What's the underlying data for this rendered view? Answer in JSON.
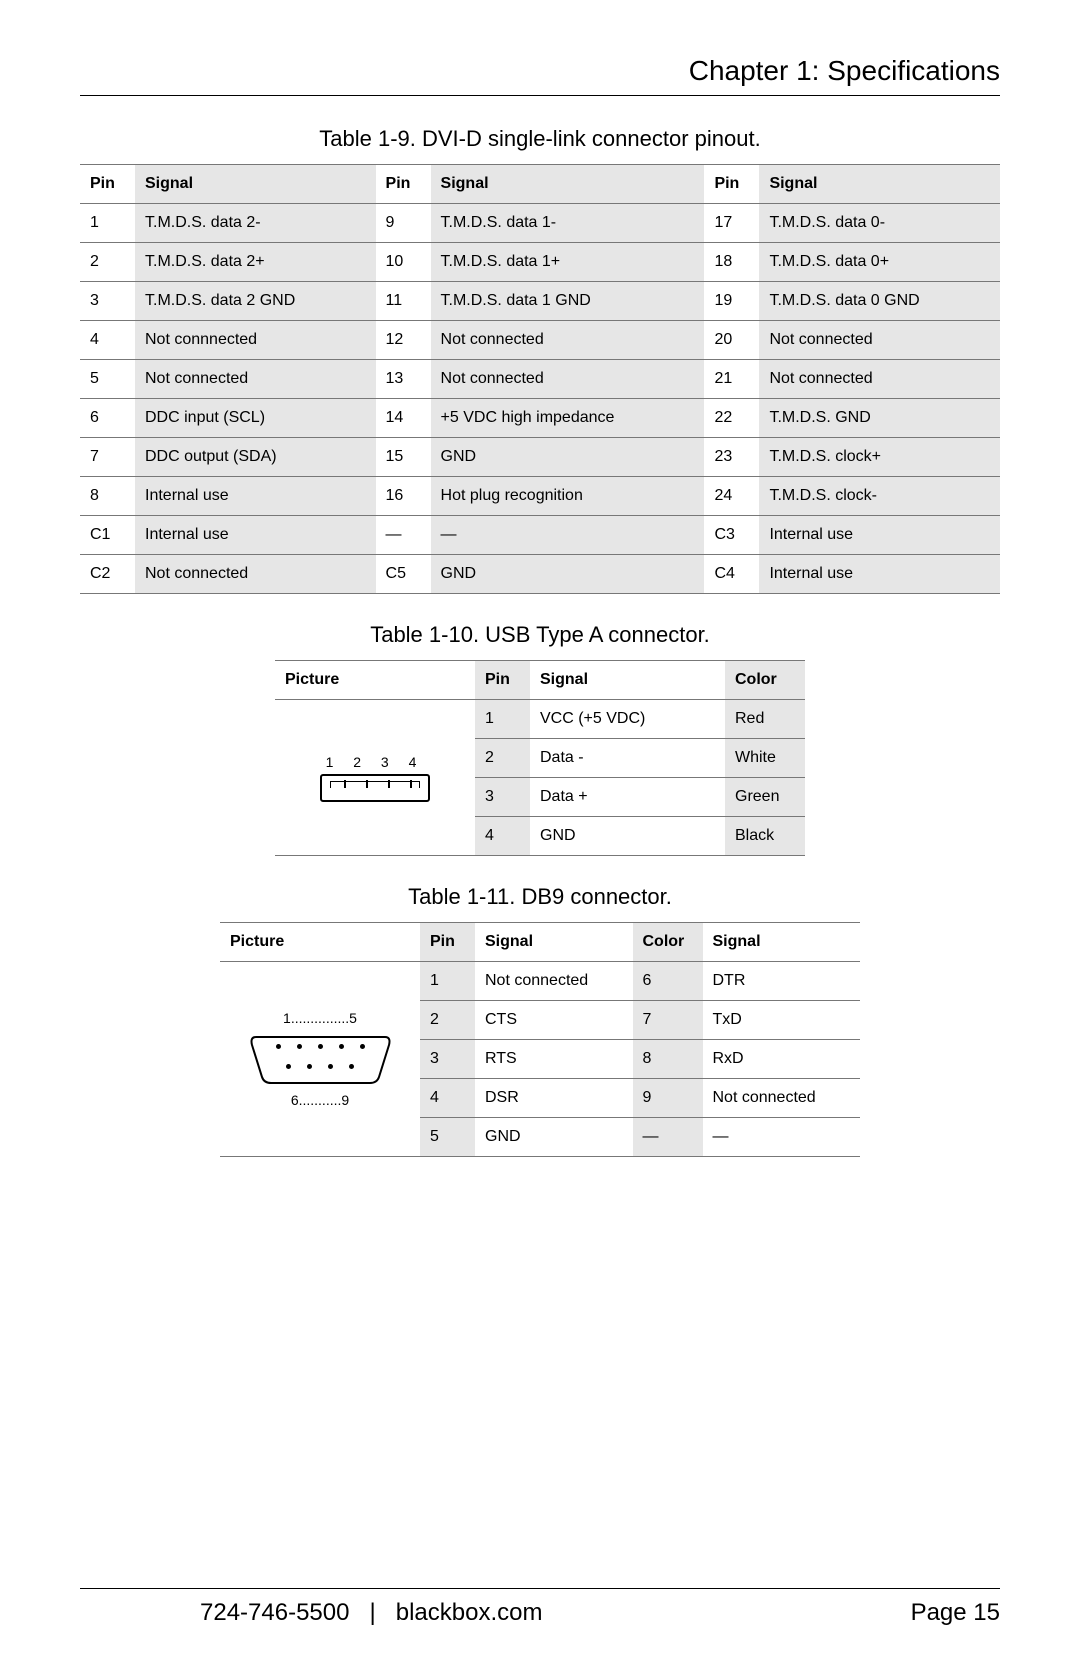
{
  "chapter_title": "Chapter 1: Specifications",
  "dvi": {
    "caption": "Table 1-9. DVI-D single-link connector pinout.",
    "headers": [
      "Pin",
      "Signal",
      "Pin",
      "Signal",
      "Pin",
      "Signal"
    ],
    "rows": [
      [
        "1",
        "T.M.D.S. data 2-",
        "9",
        "T.M.D.S. data 1-",
        "17",
        "T.M.D.S. data 0-"
      ],
      [
        "2",
        "T.M.D.S. data 2+",
        "10",
        "T.M.D.S. data 1+",
        "18",
        "T.M.D.S. data 0+"
      ],
      [
        "3",
        "T.M.D.S. data 2 GND",
        "11",
        "T.M.D.S. data 1 GND",
        "19",
        "T.M.D.S. data 0 GND"
      ],
      [
        "4",
        "Not connnected",
        "12",
        "Not connected",
        "20",
        "Not connected"
      ],
      [
        "5",
        "Not connected",
        "13",
        "Not connected",
        "21",
        "Not connected"
      ],
      [
        "6",
        "DDC input (SCL)",
        "14",
        "+5 VDC high impedance",
        "22",
        "T.M.D.S. GND"
      ],
      [
        "7",
        "DDC output (SDA)",
        "15",
        "GND",
        "23",
        "T.M.D.S. clock+"
      ],
      [
        "8",
        "Internal use",
        "16",
        "Hot plug recognition",
        "24",
        "T.M.D.S. clock-"
      ],
      [
        "C1",
        "Internal use",
        "—",
        "—",
        "C3",
        "Internal use"
      ],
      [
        "C2",
        "Not connected",
        "C5",
        "GND",
        "C4",
        "Internal use"
      ]
    ]
  },
  "usb": {
    "caption": "Table 1-10. USB Type A connector.",
    "headers": [
      "Picture",
      "Pin",
      "Signal",
      "Color"
    ],
    "picture_labels": "1 2 3 4",
    "rows": [
      [
        "1",
        "VCC (+5 VDC)",
        "Red"
      ],
      [
        "2",
        "Data -",
        "White"
      ],
      [
        "3",
        "Data +",
        "Green"
      ],
      [
        "4",
        "GND",
        "Black"
      ]
    ]
  },
  "db9": {
    "caption": "Table 1-11. DB9 connector.",
    "headers": [
      "Picture",
      "Pin",
      "Signal",
      "Color",
      "Signal"
    ],
    "label_top": "1...............5",
    "label_bot": "6...........9",
    "rows": [
      [
        "1",
        "Not connected",
        "6",
        "DTR"
      ],
      [
        "2",
        "CTS",
        "7",
        "TxD"
      ],
      [
        "3",
        "RTS",
        "8",
        "RxD"
      ],
      [
        "4",
        "DSR",
        "9",
        "Not connected"
      ],
      [
        "5",
        "GND",
        "—",
        "—"
      ]
    ]
  },
  "footer": {
    "phone": "724-746-5500",
    "sep": "|",
    "site": "blackbox.com",
    "page": "Page 15"
  },
  "style": {
    "shade_color": "#e6e6e6",
    "border_color": "#777777",
    "font_size_body": 16,
    "font_size_caption": 22,
    "font_size_title": 28,
    "font_size_footer": 24
  }
}
